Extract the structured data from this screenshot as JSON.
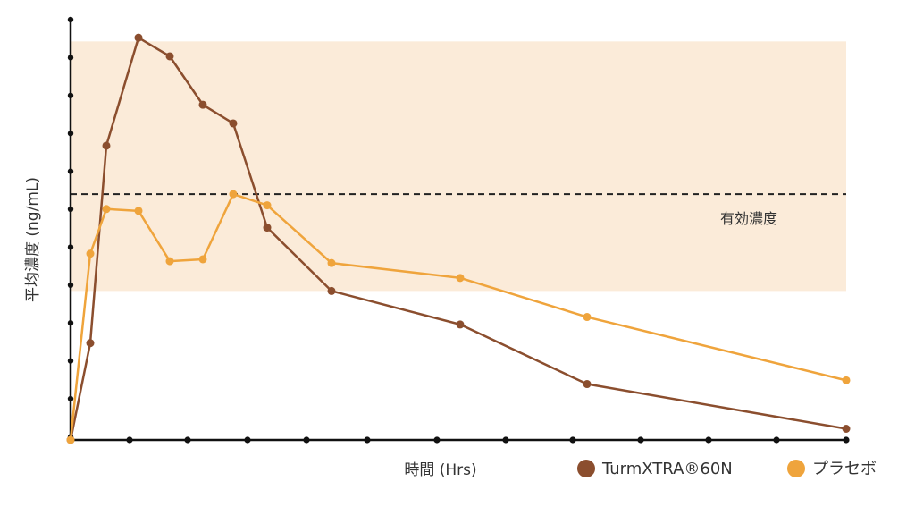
{
  "chart_data": {
    "type": "line",
    "title": "",
    "xlabel": "時間 (Hrs)",
    "ylabel": "平均濃度 (ng/mL)",
    "x_tick_labels_shown": false,
    "y_tick_labels_shown": false,
    "effective_band": {
      "y_min": 40,
      "y_max": 107
    },
    "reference_line": {
      "label": "有効濃度",
      "y": 66,
      "style": "dashed"
    },
    "legend_position": "bottom-right",
    "series": [
      {
        "name": "TurmXTRA®60N",
        "color": "#8B4E2E",
        "points": [
          [
            0,
            0
          ],
          [
            0.25,
            26
          ],
          [
            0.5,
            79
          ],
          [
            1,
            108
          ],
          [
            1.5,
            103
          ],
          [
            2,
            90
          ],
          [
            2.5,
            85
          ],
          [
            3,
            57
          ],
          [
            4,
            40
          ],
          [
            6,
            31
          ],
          [
            8,
            15
          ],
          [
            12,
            3
          ]
        ]
      },
      {
        "name": "プラセボ",
        "color": "#EFA43C",
        "points": [
          [
            0,
            0
          ],
          [
            0.25,
            50
          ],
          [
            0.5,
            62
          ],
          [
            1,
            61.5
          ],
          [
            1.5,
            48
          ],
          [
            2,
            48.5
          ],
          [
            2.5,
            66
          ],
          [
            3,
            63
          ],
          [
            4,
            47.5
          ],
          [
            6,
            43.5
          ],
          [
            8,
            33
          ],
          [
            12,
            16
          ]
        ]
      }
    ]
  }
}
